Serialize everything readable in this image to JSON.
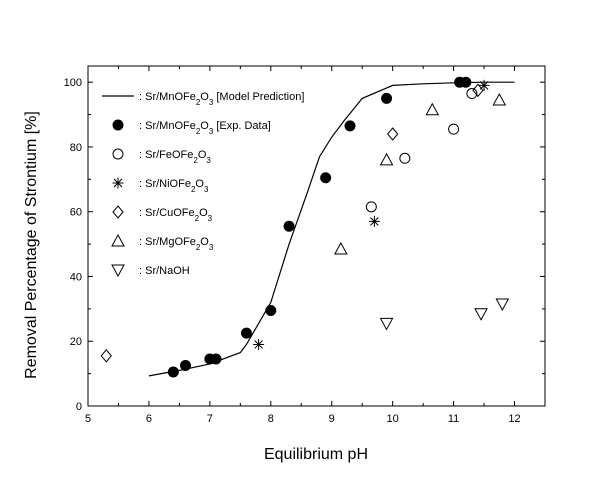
{
  "chart_data": {
    "type": "scatter",
    "xlabel": "Equilibrium pH",
    "ylabel": "Removal Percentage of Strontium [%]",
    "xlim": [
      5,
      12.5
    ],
    "ylim": [
      0,
      105
    ],
    "xticks": [
      5,
      6,
      7,
      8,
      9,
      10,
      11,
      12
    ],
    "yticks": [
      0,
      20,
      40,
      60,
      80,
      100
    ],
    "grid": false,
    "legend_position": "top-left",
    "series": [
      {
        "name": "Sr/MnOFe2O3 [Model Prediction]",
        "legend": {
          "pre": ": Sr/MnOFe",
          "sub": "2",
          "mid": "O",
          "sub2": "3",
          "post": " [Model Prediction]"
        },
        "marker": "line",
        "x": [
          6.0,
          6.5,
          7.0,
          7.5,
          7.6,
          8.0,
          8.3,
          8.6,
          8.8,
          9.0,
          9.2,
          9.5,
          10.0,
          10.5,
          11.0,
          11.5,
          12.0
        ],
        "y": [
          9.3,
          11,
          13,
          16.5,
          19,
          32,
          50,
          66,
          77,
          83,
          88,
          95,
          99,
          99.5,
          99.8,
          100,
          100
        ]
      },
      {
        "name": "Sr/MnOFe2O3 [Exp. Data]",
        "legend": {
          "pre": ": Sr/MnOFe",
          "sub": "2",
          "mid": "O",
          "sub2": "3",
          "post": " [Exp. Data]"
        },
        "marker": "filled-circle",
        "x": [
          6.4,
          6.6,
          7.0,
          7.1,
          7.6,
          8.0,
          8.3,
          8.9,
          9.3,
          9.9,
          11.1,
          11.2
        ],
        "y": [
          10.5,
          12.5,
          14.5,
          14.5,
          22.5,
          29.5,
          55.5,
          70.5,
          86.5,
          95,
          100,
          100
        ]
      },
      {
        "name": "Sr/FeOFe2O3",
        "legend": {
          "pre": ": Sr/FeOFe",
          "sub": "2",
          "mid": "O",
          "sub2": "3",
          "post": ""
        },
        "marker": "open-circle",
        "x": [
          9.65,
          10.2,
          11.0,
          11.3
        ],
        "y": [
          61.5,
          76.5,
          85.5,
          96.5
        ]
      },
      {
        "name": "Sr/NiOFe2O3",
        "legend": {
          "pre": ": Sr/NiOFe",
          "sub": "2",
          "mid": "O",
          "sub2": "3",
          "post": ""
        },
        "marker": "asterisk",
        "x": [
          7.8,
          9.7,
          11.5
        ],
        "y": [
          19,
          57,
          99
        ]
      },
      {
        "name": "Sr/CuOFe2O3",
        "legend": {
          "pre": ": Sr/CuOFe",
          "sub": "2",
          "mid": "O",
          "sub2": "3",
          "post": ""
        },
        "marker": "open-diamond",
        "x": [
          5.3,
          10.0,
          11.4
        ],
        "y": [
          15.5,
          84,
          97.5
        ]
      },
      {
        "name": "Sr/MgOFe2O3",
        "legend": {
          "pre": ": Sr/MgOFe",
          "sub": "2",
          "mid": "O",
          "sub2": "3",
          "post": ""
        },
        "marker": "open-triangle-up",
        "x": [
          9.15,
          9.9,
          10.65,
          11.75
        ],
        "y": [
          48.5,
          76,
          91.5,
          94.5
        ]
      },
      {
        "name": "Sr/NaOH",
        "legend": {
          "pre": ": Sr/NaOH",
          "sub": "",
          "mid": "",
          "sub2": "",
          "post": ""
        },
        "marker": "open-triangle-down",
        "x": [
          9.9,
          11.45,
          11.8
        ],
        "y": [
          25.5,
          28.5,
          31.5
        ]
      }
    ]
  }
}
